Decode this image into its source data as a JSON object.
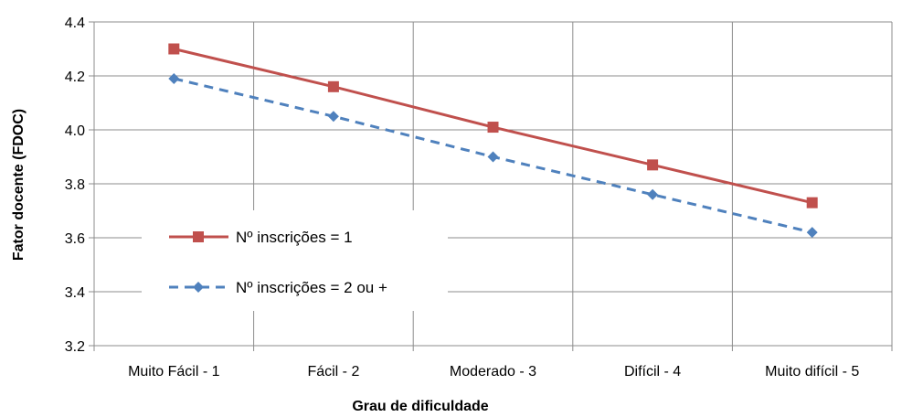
{
  "chart_data": {
    "type": "line",
    "title": "",
    "xlabel": "Grau de dificuldade",
    "ylabel": "Fator docente (FDOC)",
    "categories": [
      "Muito Fácil - 1",
      "Fácil - 2",
      "Moderado - 3",
      "Difícil - 4",
      "Muito difícil - 5"
    ],
    "ylim": [
      3.2,
      4.4
    ],
    "yticks": [
      "3.2",
      "3.4",
      "3.6",
      "3.8",
      "4.0",
      "4.2",
      "4.4"
    ],
    "grid": true,
    "legend_position": "bottom-left",
    "series": [
      {
        "name": "Nº inscrições = 1",
        "values": [
          4.3,
          4.16,
          4.01,
          3.87,
          3.73
        ],
        "color": "#C0504D",
        "marker": "square",
        "line_style": "solid"
      },
      {
        "name": "Nº inscrições = 2 ou +",
        "values": [
          4.19,
          4.05,
          3.9,
          3.76,
          3.62
        ],
        "color": "#4F81BD",
        "marker": "diamond",
        "line_style": "dashed"
      }
    ]
  }
}
